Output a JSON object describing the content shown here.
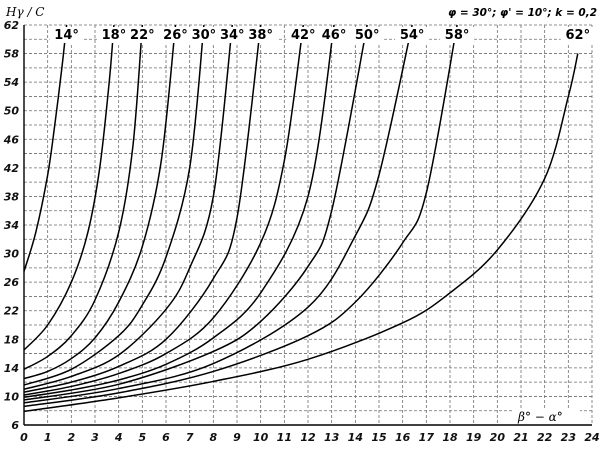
{
  "chart_data": {
    "type": "line",
    "ylabel": "Hγ / C",
    "xlabel": "β° − α°",
    "annotation": "φ = 30°; φ' = 10°; k = 0,2",
    "xlim": [
      0,
      24
    ],
    "ylim": [
      6,
      62
    ],
    "x_ticks": [
      "0",
      "1",
      "2",
      "3",
      "4",
      "5",
      "6",
      "7",
      "8",
      "9",
      "10",
      "11",
      "12",
      "13",
      "14",
      "15",
      "16",
      "17",
      "18",
      "19",
      "20",
      "21",
      "22",
      "23",
      "24"
    ],
    "y_ticks": [
      "6",
      "10",
      "14",
      "18",
      "22",
      "26",
      "30",
      "34",
      "38",
      "42",
      "46",
      "50",
      "54",
      "58",
      "62"
    ],
    "grid": true,
    "series": [
      {
        "name": "14°",
        "x": [
          0,
          0.5,
          1.0,
          1.3,
          1.6,
          1.8
        ],
        "y": [
          27.5,
          33,
          41,
          48,
          56,
          62
        ]
      },
      {
        "name": "18°",
        "x": [
          0,
          1.0,
          2.0,
          2.7,
          3.2,
          3.6,
          3.8
        ],
        "y": [
          16.5,
          20,
          26,
          33,
          42,
          54,
          62
        ]
      },
      {
        "name": "22°",
        "x": [
          0,
          1.0,
          2.0,
          3.0,
          4.0,
          4.6,
          5.0
        ],
        "y": [
          13.8,
          15.6,
          18.5,
          23.5,
          33,
          45,
          62
        ]
      },
      {
        "name": "26°",
        "x": [
          0,
          1.0,
          2.0,
          3.0,
          4.0,
          5.0,
          5.8,
          6.4
        ],
        "y": [
          12.5,
          13.5,
          15.3,
          18.2,
          23.2,
          31,
          43,
          62
        ]
      },
      {
        "name": "30°",
        "x": [
          0,
          2.0,
          4.0,
          5.0,
          6.0,
          7.0,
          7.6
        ],
        "y": [
          11.6,
          13.8,
          18.5,
          22.8,
          29.5,
          42,
          62
        ]
      },
      {
        "name": "34°",
        "x": [
          0,
          2.0,
          4.0,
          6.0,
          7.0,
          8.0,
          8.8
        ],
        "y": [
          11.0,
          12.8,
          15.8,
          22.2,
          28,
          38,
          62
        ]
      },
      {
        "name": "38°",
        "x": [
          0,
          2.0,
          4.0,
          6.0,
          8.0,
          9.0,
          10.0
        ],
        "y": [
          10.6,
          12.0,
          14.2,
          18.0,
          26.5,
          35,
          62
        ]
      },
      {
        "name": "42°",
        "x": [
          0,
          2.0,
          4.0,
          6.0,
          8.0,
          10.0,
          11.0,
          11.8
        ],
        "y": [
          10.2,
          11.4,
          13.2,
          16.0,
          21.0,
          31.5,
          43,
          62
        ]
      },
      {
        "name": "46°",
        "x": [
          0,
          2.0,
          4.0,
          6.0,
          8.0,
          10.0,
          12.0,
          13.1
        ],
        "y": [
          9.9,
          10.9,
          12.3,
          14.5,
          18.2,
          24.5,
          38,
          62
        ]
      },
      {
        "name": "50°",
        "x": [
          0,
          4.0,
          8.0,
          10.0,
          12.0,
          13.0,
          14.5
        ],
        "y": [
          9.5,
          11.7,
          16.3,
          20.5,
          28.2,
          36,
          62
        ]
      },
      {
        "name": "54°",
        "x": [
          0,
          4.0,
          8.0,
          12.0,
          14.0,
          15.0,
          16.4
        ],
        "y": [
          9.1,
          11.1,
          14.6,
          22.5,
          32.5,
          41,
          62
        ]
      },
      {
        "name": "58°",
        "x": [
          0,
          4.0,
          8.0,
          12.0,
          14.0,
          16.0,
          17.0,
          18.3
        ],
        "y": [
          8.6,
          10.5,
          13.5,
          18.5,
          23.2,
          31.5,
          38.5,
          62
        ]
      },
      {
        "name": "62°",
        "x": [
          0,
          4.0,
          8.0,
          12.0,
          16.0,
          18.0,
          20.0,
          22.0,
          23.0,
          23.4
        ],
        "y": [
          7.9,
          9.8,
          12.1,
          15.2,
          20.3,
          24.5,
          30.5,
          40.5,
          52,
          58
        ]
      }
    ],
    "label_anchors": [
      1.8,
      3.8,
      5.0,
      6.4,
      7.6,
      8.8,
      10.0,
      11.8,
      13.1,
      14.5,
      16.4,
      18.3,
      23.4
    ]
  }
}
